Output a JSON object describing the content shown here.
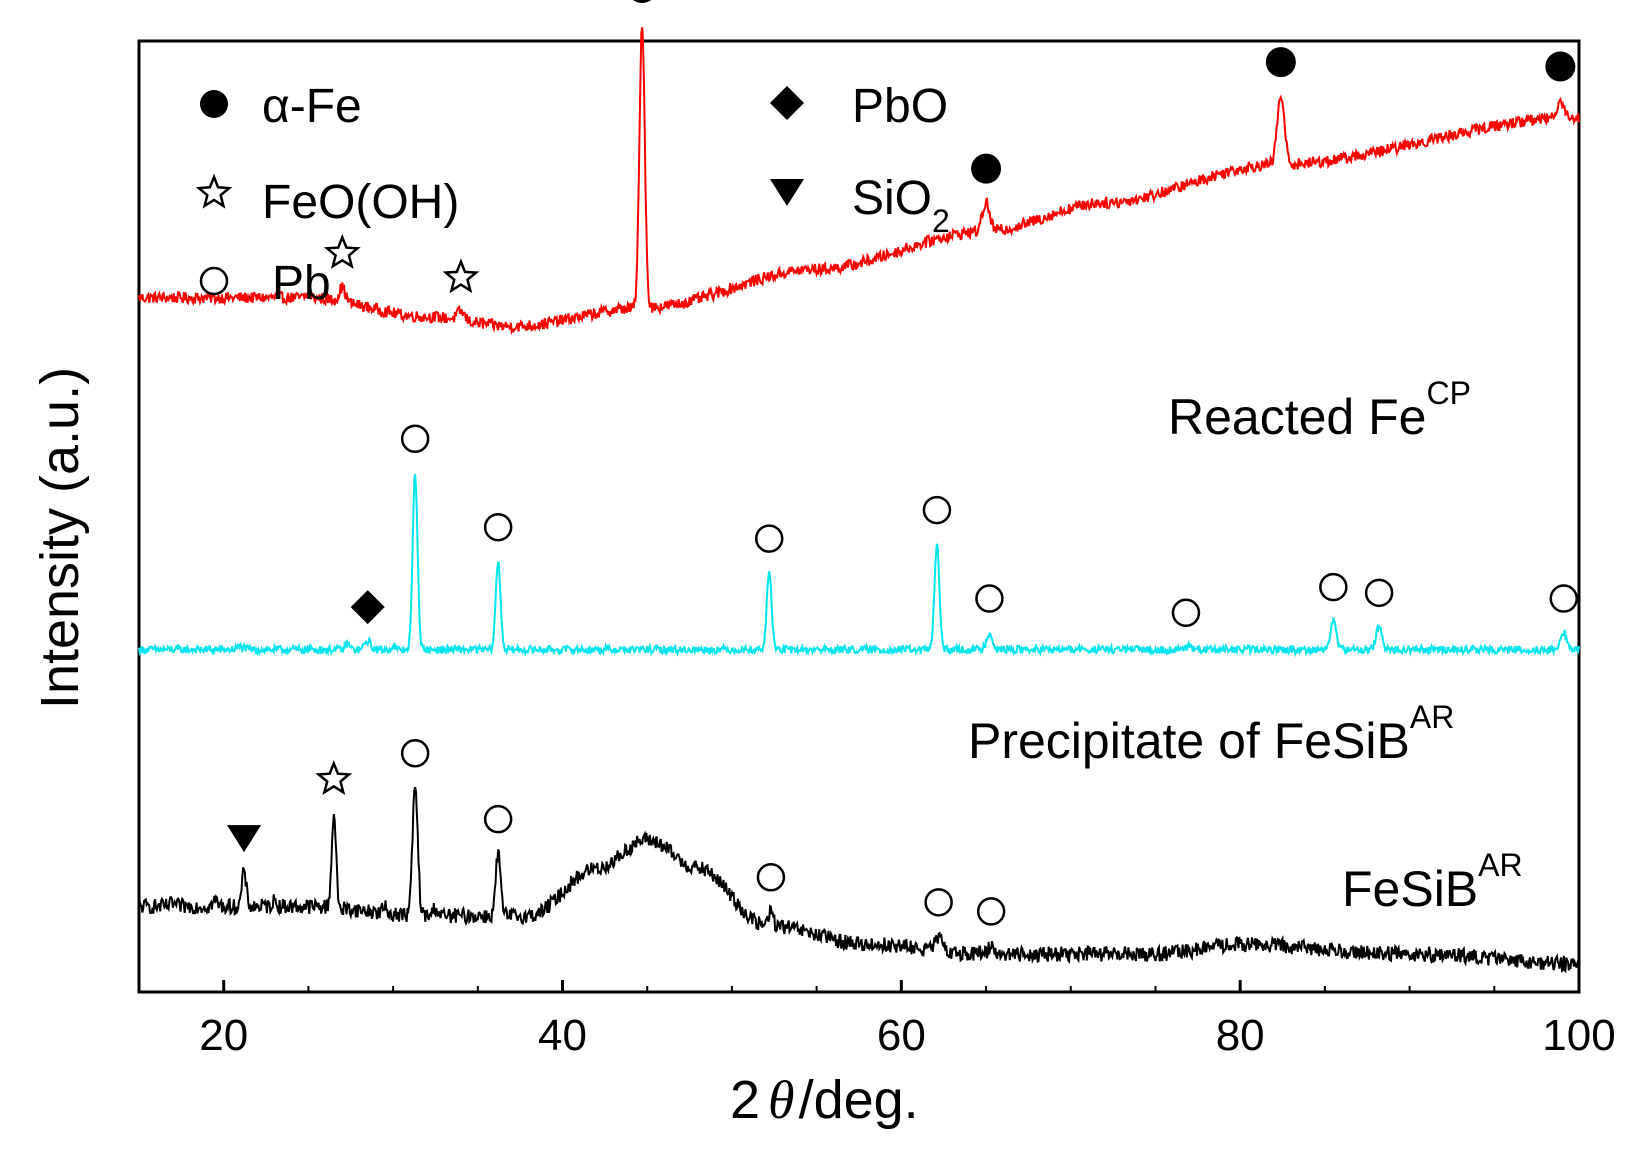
{
  "chart_data": {
    "type": "line",
    "title": "",
    "xlabel": "2θ/deg.",
    "xlabel_parts": {
      "prefix": "2",
      "symbol": "θ",
      "suffix": "/deg."
    },
    "ylabel": "Intensity (a.u.)",
    "xlim": [
      15,
      100
    ],
    "xticks": [
      20,
      40,
      60,
      80,
      100
    ],
    "xtick_labels": [
      "20",
      "40",
      "60",
      "80",
      "100"
    ],
    "yticks": [],
    "colors": {
      "reacted": "#ff0000",
      "precipitate": "#00e5ee",
      "fesib": "#000000"
    },
    "legend": [
      {
        "marker": "filled-circle",
        "label": "α-Fe"
      },
      {
        "marker": "open-star",
        "label": "FeO(OH)"
      },
      {
        "marker": "open-circle",
        "label": "Pb"
      },
      {
        "marker": "filled-diamond",
        "label": "PbO"
      },
      {
        "marker": "filled-triangle-down",
        "label": "SiO",
        "sub": "2"
      }
    ],
    "series": [
      {
        "name": "Reacted Fe^CP",
        "label_main": "Reacted  Fe",
        "label_sup": "CP",
        "color": "#ff0000",
        "baseline": [
          [
            15,
            0.73
          ],
          [
            25,
            0.73
          ],
          [
            32,
            0.71
          ],
          [
            37,
            0.7
          ],
          [
            45,
            0.72
          ],
          [
            55,
            0.76
          ],
          [
            65,
            0.8
          ],
          [
            72,
            0.83
          ],
          [
            82,
            0.87
          ],
          [
            100,
            0.92
          ]
        ],
        "peaks": [
          {
            "x": 25.0,
            "h": 0.01,
            "w": 0.2
          },
          {
            "x": 27.0,
            "h": 0.05,
            "w": 0.25,
            "marker": "open-star"
          },
          {
            "x": 34.0,
            "h": 0.03,
            "w": 0.3,
            "marker": "open-star"
          },
          {
            "x": 44.7,
            "h": 1.0,
            "w": 0.22,
            "marker": "filled-circle"
          },
          {
            "x": 65.0,
            "h": 0.1,
            "w": 0.3,
            "marker": "filled-circle"
          },
          {
            "x": 82.4,
            "h": 0.24,
            "w": 0.3,
            "marker": "filled-circle"
          },
          {
            "x": 98.9,
            "h": 0.06,
            "w": 0.3,
            "marker": "filled-circle"
          }
        ],
        "noise": 0.006
      },
      {
        "name": "Precipitate of FeSiB^AR",
        "label_main": "Precipitate of  FeSiB",
        "label_sup": "AR",
        "color": "#00e5ee",
        "baseline": [
          [
            15,
            0.36
          ],
          [
            100,
            0.36
          ]
        ],
        "peaks": [
          {
            "x": 21.0,
            "h": 0.01,
            "w": 0.3
          },
          {
            "x": 27.3,
            "h": 0.02,
            "w": 0.2
          },
          {
            "x": 28.5,
            "h": 0.03,
            "w": 0.25,
            "marker": "filled-diamond"
          },
          {
            "x": 30.0,
            "h": 0.01,
            "w": 0.2
          },
          {
            "x": 31.3,
            "h": 0.62,
            "w": 0.2,
            "marker": "open-circle"
          },
          {
            "x": 36.2,
            "h": 0.31,
            "w": 0.2,
            "marker": "open-circle"
          },
          {
            "x": 52.2,
            "h": 0.27,
            "w": 0.2,
            "marker": "open-circle"
          },
          {
            "x": 62.1,
            "h": 0.37,
            "w": 0.2,
            "marker": "open-circle"
          },
          {
            "x": 65.2,
            "h": 0.06,
            "w": 0.25,
            "marker": "open-circle"
          },
          {
            "x": 76.8,
            "h": 0.01,
            "w": 0.3,
            "marker": "open-circle"
          },
          {
            "x": 85.5,
            "h": 0.1,
            "w": 0.25,
            "marker": "open-circle"
          },
          {
            "x": 88.2,
            "h": 0.08,
            "w": 0.25,
            "marker": "open-circle"
          },
          {
            "x": 99.1,
            "h": 0.06,
            "w": 0.25,
            "marker": "open-circle"
          }
        ],
        "noise": 0.004
      },
      {
        "name": "FeSiB^AR",
        "label_main": "FeSiB",
        "label_sup": "AR",
        "color": "#000000",
        "baseline": [
          [
            15,
            0.09
          ],
          [
            25,
            0.09
          ],
          [
            32,
            0.08
          ],
          [
            38,
            0.08
          ],
          [
            42,
            0.13
          ],
          [
            45,
            0.16
          ],
          [
            48,
            0.13
          ],
          [
            52,
            0.07
          ],
          [
            58,
            0.05
          ],
          [
            65,
            0.04
          ],
          [
            75,
            0.04
          ],
          [
            80,
            0.05
          ],
          [
            90,
            0.04
          ],
          [
            100,
            0.03
          ]
        ],
        "peaks": [
          {
            "x": 17.0,
            "h": 0.01,
            "w": 0.2
          },
          {
            "x": 19.5,
            "h": 0.02,
            "w": 0.2
          },
          {
            "x": 21.2,
            "h": 0.12,
            "w": 0.18,
            "marker": "filled-triangle-down"
          },
          {
            "x": 23.0,
            "h": 0.02,
            "w": 0.2
          },
          {
            "x": 26.5,
            "h": 0.33,
            "w": 0.18,
            "marker": "open-star"
          },
          {
            "x": 29.5,
            "h": 0.02,
            "w": 0.2
          },
          {
            "x": 31.3,
            "h": 0.45,
            "w": 0.22,
            "marker": "open-circle"
          },
          {
            "x": 32.5,
            "h": 0.03,
            "w": 0.2
          },
          {
            "x": 36.2,
            "h": 0.22,
            "w": 0.2,
            "marker": "open-circle"
          },
          {
            "x": 52.3,
            "h": 0.05,
            "w": 0.2,
            "marker": "open-circle"
          },
          {
            "x": 62.2,
            "h": 0.05,
            "w": 0.25,
            "marker": "open-circle"
          },
          {
            "x": 65.3,
            "h": 0.03,
            "w": 0.25,
            "marker": "open-circle"
          }
        ],
        "noise": 0.008
      }
    ]
  }
}
